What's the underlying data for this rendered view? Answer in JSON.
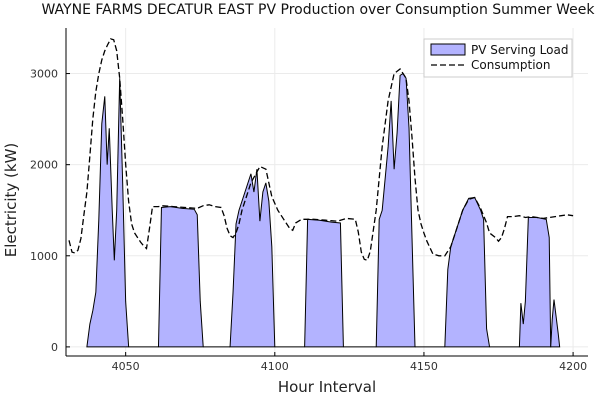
{
  "chart_data": {
    "type": "area",
    "title": "WAYNE FARMS DECATUR EAST PV Production over Consumption Summer Week",
    "xlabel": "Hour Interval",
    "ylabel": "Electricity (kW)",
    "xlim": [
      4030,
      4205
    ],
    "ylim": [
      -100,
      3500
    ],
    "xticks": [
      4050,
      4100,
      4150,
      4200
    ],
    "yticks": [
      0,
      1000,
      2000,
      3000
    ],
    "grid": true,
    "legend_position": "top-right",
    "series": [
      {
        "name": "PV Serving Load",
        "style": "filled-area",
        "color": "#b3b3ff",
        "points": [
          [
            4037,
            0
          ],
          [
            4038,
            250
          ],
          [
            4039,
            400
          ],
          [
            4040,
            600
          ],
          [
            4041,
            1400
          ],
          [
            4042,
            2450
          ],
          [
            4043,
            2750
          ],
          [
            4043.8,
            2000
          ],
          [
            4044.5,
            2400
          ],
          [
            4045.5,
            1500
          ],
          [
            4046.2,
            950
          ],
          [
            4047,
            1500
          ],
          [
            4048,
            2950
          ],
          [
            4049,
            1800
          ],
          [
            4050,
            500
          ],
          [
            4051,
            0
          ],
          [
            4061,
            0
          ],
          [
            4062,
            1530
          ],
          [
            4065,
            1540
          ],
          [
            4069,
            1520
          ],
          [
            4073,
            1510
          ],
          [
            4074,
            1450
          ],
          [
            4075,
            500
          ],
          [
            4076,
            0
          ],
          [
            4085,
            0
          ],
          [
            4086,
            600
          ],
          [
            4087,
            1350
          ],
          [
            4088,
            1500
          ],
          [
            4090,
            1700
          ],
          [
            4092,
            1900
          ],
          [
            4093,
            1700
          ],
          [
            4094,
            1950
          ],
          [
            4095,
            1380
          ],
          [
            4096,
            1700
          ],
          [
            4097,
            1800
          ],
          [
            4098,
            1600
          ],
          [
            4099,
            1100
          ],
          [
            4100,
            0
          ],
          [
            4110,
            0
          ],
          [
            4111,
            1400
          ],
          [
            4115,
            1390
          ],
          [
            4119,
            1370
          ],
          [
            4122,
            1360
          ],
          [
            4123,
            0
          ],
          [
            4134,
            0
          ],
          [
            4135,
            1400
          ],
          [
            4136,
            1500
          ],
          [
            4138,
            2200
          ],
          [
            4139,
            2700
          ],
          [
            4140,
            1950
          ],
          [
            4141,
            2350
          ],
          [
            4142,
            2980
          ],
          [
            4143,
            3000
          ],
          [
            4144,
            2950
          ],
          [
            4145,
            2400
          ],
          [
            4146,
            1200
          ],
          [
            4147,
            0
          ],
          [
            4157,
            0
          ],
          [
            4158,
            850
          ],
          [
            4159,
            1100
          ],
          [
            4161,
            1300
          ],
          [
            4163,
            1500
          ],
          [
            4165,
            1630
          ],
          [
            4167,
            1640
          ],
          [
            4169,
            1500
          ],
          [
            4170,
            1400
          ],
          [
            4171,
            200
          ],
          [
            4172,
            0
          ],
          [
            4182,
            0
          ],
          [
            4182.5,
            480
          ],
          [
            4183.3,
            250
          ],
          [
            4184,
            500
          ],
          [
            4185,
            1420
          ],
          [
            4188,
            1420
          ],
          [
            4191,
            1400
          ],
          [
            4192,
            1200
          ],
          [
            4192.5,
            0
          ],
          [
            4193,
            300
          ],
          [
            4193.6,
            520
          ],
          [
            4195,
            150
          ],
          [
            4195.5,
            0
          ]
        ]
      },
      {
        "name": "Consumption",
        "style": "dashed-line",
        "color": "#000000",
        "points": [
          [
            4031,
            1170
          ],
          [
            4032,
            1040
          ],
          [
            4033,
            1030
          ],
          [
            4034,
            1060
          ],
          [
            4035,
            1190
          ],
          [
            4036,
            1450
          ],
          [
            4037,
            1700
          ],
          [
            4038,
            2100
          ],
          [
            4039,
            2500
          ],
          [
            4040,
            2800
          ],
          [
            4041,
            3000
          ],
          [
            4042,
            3150
          ],
          [
            4043,
            3250
          ],
          [
            4044,
            3320
          ],
          [
            4045,
            3380
          ],
          [
            4046,
            3370
          ],
          [
            4047,
            3250
          ],
          [
            4048,
            2950
          ],
          [
            4049,
            2500
          ],
          [
            4050,
            2000
          ],
          [
            4051,
            1600
          ],
          [
            4052,
            1350
          ],
          [
            4053,
            1250
          ],
          [
            4054,
            1200
          ],
          [
            4055,
            1150
          ],
          [
            4056,
            1110
          ],
          [
            4057,
            1080
          ],
          [
            4058,
            1300
          ],
          [
            4059,
            1540
          ],
          [
            4061,
            1540
          ],
          [
            4062,
            1550
          ],
          [
            4066,
            1540
          ],
          [
            4070,
            1530
          ],
          [
            4074,
            1520
          ],
          [
            4076,
            1550
          ],
          [
            4078,
            1560
          ],
          [
            4080,
            1540
          ],
          [
            4082,
            1530
          ],
          [
            4083,
            1440
          ],
          [
            4084,
            1300
          ],
          [
            4085,
            1220
          ],
          [
            4086,
            1200
          ],
          [
            4087,
            1250
          ],
          [
            4088,
            1350
          ],
          [
            4089,
            1500
          ],
          [
            4092,
            1800
          ],
          [
            4095,
            1980
          ],
          [
            4097,
            1950
          ],
          [
            4099,
            1650
          ],
          [
            4101,
            1500
          ],
          [
            4103,
            1400
          ],
          [
            4105,
            1300
          ],
          [
            4106,
            1280
          ],
          [
            4107,
            1360
          ],
          [
            4109,
            1400
          ],
          [
            4113,
            1400
          ],
          [
            4117,
            1390
          ],
          [
            4121,
            1380
          ],
          [
            4124,
            1410
          ],
          [
            4127,
            1400
          ],
          [
            4128,
            1260
          ],
          [
            4129,
            1040
          ],
          [
            4130,
            960
          ],
          [
            4131,
            950
          ],
          [
            4132,
            1050
          ],
          [
            4134,
            1500
          ],
          [
            4136,
            2200
          ],
          [
            4138,
            2700
          ],
          [
            4140,
            3000
          ],
          [
            4142,
            3050
          ],
          [
            4144,
            2950
          ],
          [
            4145,
            2700
          ],
          [
            4146,
            2300
          ],
          [
            4147,
            1850
          ],
          [
            4148,
            1500
          ],
          [
            4149,
            1350
          ],
          [
            4150,
            1250
          ],
          [
            4151,
            1160
          ],
          [
            4152,
            1090
          ],
          [
            4153,
            1020
          ],
          [
            4155,
            1000
          ],
          [
            4157,
            1000
          ],
          [
            4159,
            1100
          ],
          [
            4161,
            1300
          ],
          [
            4163,
            1500
          ],
          [
            4165,
            1620
          ],
          [
            4167,
            1640
          ],
          [
            4169,
            1520
          ],
          [
            4171,
            1360
          ],
          [
            4172,
            1250
          ],
          [
            4174,
            1200
          ],
          [
            4175,
            1160
          ],
          [
            4176,
            1200
          ],
          [
            4177,
            1300
          ],
          [
            4178,
            1430
          ],
          [
            4180,
            1430
          ],
          [
            4182,
            1440
          ],
          [
            4184,
            1420
          ],
          [
            4186,
            1430
          ],
          [
            4188,
            1420
          ],
          [
            4190,
            1410
          ],
          [
            4192,
            1420
          ],
          [
            4194,
            1430
          ],
          [
            4196,
            1440
          ],
          [
            4198,
            1450
          ],
          [
            4200,
            1440
          ]
        ]
      }
    ]
  }
}
